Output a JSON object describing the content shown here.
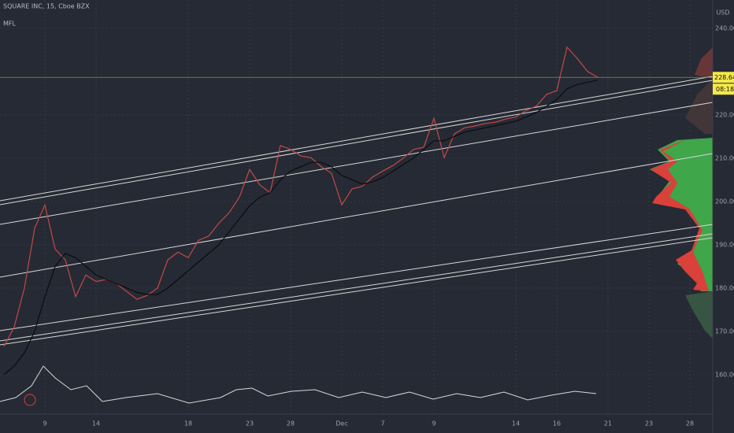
{
  "chart_data": {
    "type": "line",
    "title": "SQUARE INC, 15, Cboe BZX",
    "subtitle": "MFL",
    "currency": "USD",
    "price_label": "228.64",
    "countdown_label": "08:18",
    "categories": [
      null,
      null,
      null,
      null,
      "9",
      null,
      null,
      null,
      null,
      "14",
      null,
      null,
      null,
      null,
      null,
      null,
      null,
      null,
      "18",
      null,
      null,
      null,
      null,
      null,
      "23",
      null,
      null,
      null,
      "28",
      null,
      null,
      null,
      null,
      "Dec",
      null,
      null,
      null,
      "7",
      null,
      null,
      null,
      null,
      "9",
      null,
      null,
      null,
      null,
      null,
      null,
      null,
      "14",
      null,
      null,
      null,
      "16",
      null,
      null,
      null,
      null,
      "21",
      null,
      null,
      null,
      "23",
      null,
      null,
      null,
      "28"
    ],
    "series": [
      {
        "color": "#c24a46",
        "values": [
          166.5,
          171,
          180,
          193.8,
          199.2,
          189,
          186.5,
          178,
          183,
          181.5,
          182,
          181,
          179.2,
          177.4,
          178.3,
          180,
          186.5,
          188.3,
          187,
          191,
          192,
          195,
          197.4,
          201,
          207.4,
          203.8,
          202,
          212.9,
          212,
          210.5,
          210.1,
          208,
          206.5,
          199.2,
          202.9,
          203.5,
          205.6,
          207,
          208.3,
          210,
          212,
          212.5,
          219.2,
          210.1,
          215.6,
          217,
          217.4,
          218,
          218.3,
          219,
          219.5,
          221,
          222,
          224.7,
          225.6,
          235.6,
          233,
          230,
          228.64,
          null,
          null,
          null,
          null,
          null,
          null,
          null,
          null,
          null
        ]
      },
      {
        "color": "#0b0c10",
        "values": [
          160,
          162,
          165,
          170,
          178,
          185,
          188,
          187,
          185,
          183,
          182,
          181,
          180,
          179,
          178.5,
          178.5,
          180,
          182,
          184,
          186,
          188,
          190,
          193,
          196,
          199,
          201,
          202,
          205,
          207,
          208,
          209,
          209,
          208,
          206,
          205,
          204,
          204.5,
          205.5,
          207,
          208.5,
          210,
          212,
          214,
          214,
          215,
          216,
          216.5,
          217,
          217.5,
          218,
          218.5,
          219.5,
          220.5,
          222,
          223.5,
          226,
          227,
          227.5,
          228,
          null,
          null,
          null,
          null,
          null,
          null,
          null,
          null,
          null
        ]
      }
    ],
    "ylim": [
      150.9,
      246.5
    ],
    "yticks": [
      {
        "value": 240,
        "label": "240.00"
      },
      {
        "value": 220,
        "label": "220.00"
      },
      {
        "value": 210,
        "label": "210.00"
      },
      {
        "value": 200,
        "label": "200.00"
      },
      {
        "value": 190,
        "label": "190.00"
      },
      {
        "value": 180,
        "label": "180.00"
      },
      {
        "value": 170,
        "label": "170.00"
      },
      {
        "value": 160,
        "label": "160.00"
      }
    ],
    "grid": true
  }
}
